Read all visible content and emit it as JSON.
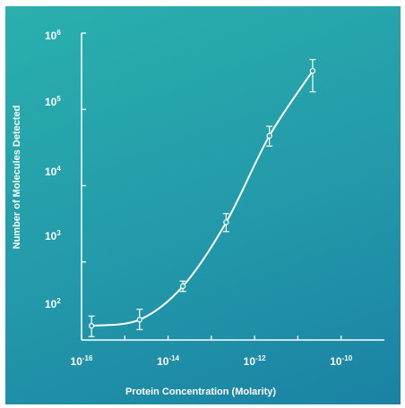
{
  "chart_data": {
    "type": "line",
    "xlabel": "Protein Concentration (Molarity)",
    "ylabel": "Number of Molecules Detected",
    "x_scale": "log",
    "y_scale": "log",
    "xlim": [
      1e-16,
      1e-09
    ],
    "ylim": [
      100,
      1000000
    ],
    "x_ticks": [
      {
        "value": 1e-16,
        "base": "10",
        "exp": "-16"
      },
      {
        "value": 1e-14,
        "base": "10",
        "exp": "-14"
      },
      {
        "value": 1e-12,
        "base": "10",
        "exp": "-12"
      },
      {
        "value": 1e-10,
        "base": "10",
        "exp": "-10"
      }
    ],
    "y_ticks": [
      {
        "value": 100,
        "base": "10",
        "exp": "2"
      },
      {
        "value": 1000,
        "base": "10",
        "exp": "3"
      },
      {
        "value": 10000,
        "base": "10",
        "exp": "4"
      },
      {
        "value": 100000,
        "base": "10",
        "exp": "5"
      },
      {
        "value": 1000000,
        "base": "10",
        "exp": "6"
      }
    ],
    "minor_x_ticks": [
      1e-15,
      1e-13,
      1e-11
    ],
    "minor_y_ticks": [],
    "grid": false,
    "colors": {
      "line": "#ffffff",
      "marker_fill": "#2aa7ad",
      "background_start": "#2ab0ad",
      "background_end": "#1a82a4"
    },
    "points": [
      {
        "x": 1.7e-16,
        "y": 145,
        "y_low": 105,
        "y_high": 195
      },
      {
        "x": 2.2e-15,
        "y": 175,
        "y_low": 130,
        "y_high": 240
      },
      {
        "x": 2.2e-14,
        "y": 480,
        "y_low": 410,
        "y_high": 560
      },
      {
        "x": 2.2e-13,
        "y": 3300,
        "y_low": 2500,
        "y_high": 4300
      },
      {
        "x": 2.2e-12,
        "y": 45000,
        "y_low": 33000,
        "y_high": 60000
      },
      {
        "x": 2.2e-11,
        "y": 320000,
        "y_low": 170000,
        "y_high": 450000
      }
    ]
  }
}
